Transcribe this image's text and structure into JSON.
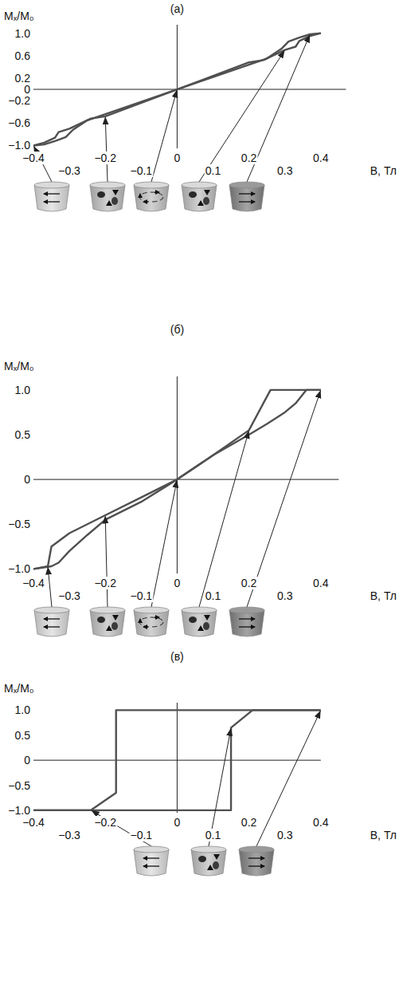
{
  "chart_data": [
    {
      "type": "line",
      "title": "(а)",
      "xlabel": "B, Тл",
      "ylabel": "Mₓ/M₀",
      "xlim": [
        -0.4,
        0.47
      ],
      "ylim": [
        -1.05,
        1.15
      ],
      "xticks": [
        {
          "value": -0.4,
          "label": "−0.4"
        },
        {
          "value": -0.3,
          "label": "−0.3"
        },
        {
          "value": -0.2,
          "label": "−0.2"
        },
        {
          "value": -0.1,
          "label": "−0.1"
        },
        0,
        0.1,
        0.2,
        0.3,
        0.4
      ],
      "yticks": [
        {
          "value": -1,
          "label": "−1.0"
        },
        {
          "value": -0.6,
          "label": "−0.6"
        },
        {
          "value": -0.2,
          "label": "−0.2"
        },
        0,
        0.2,
        0.6,
        {
          "value": 1,
          "label": "1.0"
        }
      ],
      "grid": false,
      "series": [
        {
          "color": "#505050",
          "x": [
            0.4,
            0.37,
            0.34,
            0.31,
            0.29,
            0.25,
            0,
            -0.2,
            -0.24,
            -0.3,
            -0.33,
            -0.34,
            -0.37,
            -0.4
          ],
          "values": [
            1.0,
            0.98,
            0.92,
            0.85,
            0.72,
            0.55,
            0,
            -0.48,
            -0.52,
            -0.7,
            -0.76,
            -0.86,
            -0.95,
            -1.0
          ]
        },
        {
          "color": "#505050",
          "x": [
            -0.4,
            -0.37,
            -0.34,
            -0.31,
            -0.29,
            -0.25,
            0,
            0.2,
            0.24,
            0.3,
            0.33,
            0.34,
            0.37,
            0.4
          ],
          "values": [
            -1.0,
            -0.98,
            -0.92,
            -0.85,
            -0.72,
            -0.55,
            0,
            0.48,
            0.52,
            0.7,
            0.76,
            0.86,
            0.95,
            1.0
          ]
        }
      ]
    },
    {
      "type": "line",
      "title": "(б)",
      "xlabel": "B, Тл",
      "ylabel": "Mₓ/M₀",
      "xlim": [
        -0.4,
        0.45
      ],
      "ylim": [
        -1.05,
        1.15
      ],
      "xticks": [
        {
          "value": -0.4,
          "label": "−0.4"
        },
        {
          "value": -0.3,
          "label": "−0.3"
        },
        {
          "value": -0.2,
          "label": "−0.2"
        },
        {
          "value": -0.1,
          "label": "−0.1"
        },
        0,
        0.1,
        0.2,
        0.3,
        0.4
      ],
      "yticks": [
        {
          "value": -1,
          "label": "−1.0"
        },
        {
          "value": -0.5,
          "label": "−0.5"
        },
        0,
        0.5,
        {
          "value": 1,
          "label": "1.0"
        }
      ],
      "grid": false,
      "series": [
        {
          "color": "#505050",
          "x": [
            0.4,
            0.26,
            0.24,
            0.2,
            0.1,
            0,
            -0.1,
            -0.2,
            -0.25,
            -0.3,
            -0.33,
            -0.35,
            -0.4
          ],
          "values": [
            1.0,
            1.0,
            0.85,
            0.55,
            0.27,
            0,
            -0.25,
            -0.45,
            -0.62,
            -0.8,
            -0.93,
            -0.97,
            -1.0
          ]
        },
        {
          "color": "#505050",
          "x": [
            -0.4,
            -0.36,
            -0.35,
            -0.3,
            -0.2,
            -0.1,
            0,
            0.1,
            0.2,
            0.25,
            0.3,
            0.33,
            0.36,
            0.4
          ],
          "values": [
            -1.0,
            -0.97,
            -0.75,
            -0.6,
            -0.4,
            -0.2,
            0,
            0.27,
            0.5,
            0.62,
            0.75,
            0.85,
            1.0,
            1.0
          ]
        }
      ]
    },
    {
      "type": "line",
      "title": "(в)",
      "xlabel": "B, Тл",
      "ylabel": "Mₓ/M₀",
      "xlim": [
        -0.4,
        0.4
      ],
      "ylim": [
        -1.05,
        1.15
      ],
      "xticks": [
        {
          "value": -0.4,
          "label": "−0.4"
        },
        {
          "value": -0.3,
          "label": "−0.3"
        },
        {
          "value": -0.2,
          "label": "−0.2"
        },
        {
          "value": -0.1,
          "label": "−0.1"
        },
        0,
        0.1,
        0.2,
        0.3,
        0.4
      ],
      "yticks": [
        {
          "value": -1,
          "label": "−1.0"
        },
        {
          "value": -0.5,
          "label": "−0.5"
        },
        0,
        0.5,
        {
          "value": 1,
          "label": "1.0"
        }
      ],
      "grid": false,
      "series": [
        {
          "color": "#505050",
          "x": [
            0.4,
            -0.17,
            -0.17,
            -0.24,
            -0.4
          ],
          "values": [
            1.0,
            1.0,
            -0.65,
            -1.0,
            -1.0
          ]
        },
        {
          "color": "#505050",
          "x": [
            -0.4,
            0.15,
            0.15,
            0.21,
            0.4
          ],
          "values": [
            -1.0,
            -1.0,
            0.65,
            1.0,
            1.0
          ]
        }
      ]
    }
  ]
}
